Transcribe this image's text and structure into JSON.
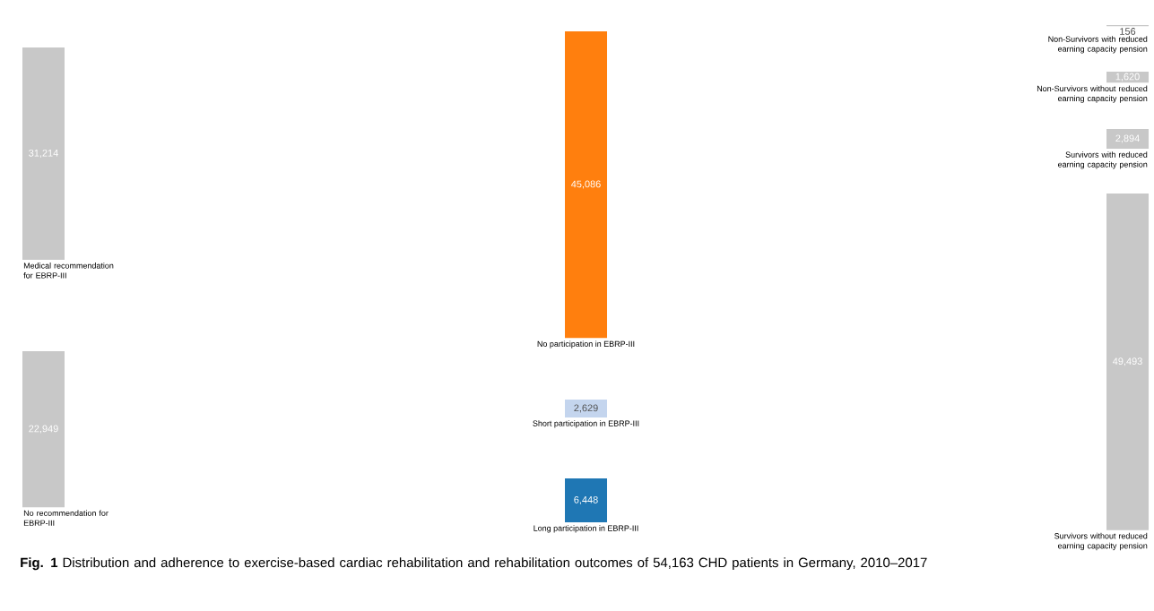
{
  "chart_data": {
    "type": "other",
    "categories": [
      "Medical recommendation for EBRP-III",
      "No recommendation for EBRP-III",
      "No participation in EBRP-III",
      "Short participation in EBRP-III",
      "Long participation in EBRP-III",
      "Non-Survivors with reduced earning capacity pension",
      "Non-Survivors without reduced earning capacity pension",
      "Survivors with reduced earning capacity pension",
      "Survivors without reduced earning capacity pension"
    ],
    "values": [
      31214,
      22949,
      45086,
      2629,
      6448,
      156,
      1620,
      2894,
      49493
    ],
    "value_labels": [
      "31,214",
      "22,949",
      "45,086",
      "2,629",
      "6,448",
      "156",
      "1,620",
      "2,894",
      "49,493"
    ],
    "colors": [
      "#c8c8c8",
      "#c8c8c8",
      "#ff7f0e",
      "#c4d5ee",
      "#1f77b4",
      "#c8c8c8",
      "#c8c8c8",
      "#c8c8c8",
      "#c8c8c8"
    ],
    "annotations": [
      "**Fig. 1** Distribution and adherence to exercise-based cardiac rehabilitation and rehabilitation outcomes of 54,163 CHD patients in Germany, 2010–2017"
    ]
  }
}
